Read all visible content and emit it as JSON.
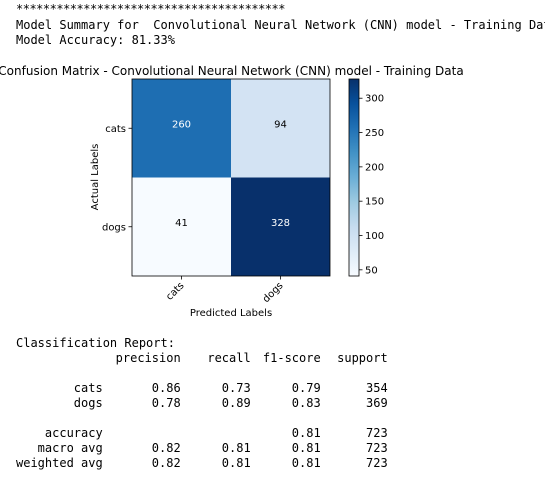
{
  "console": {
    "stars": "****************************************",
    "summary_line": "Model Summary for  Convolutional Neural Network (CNN) model - Training Data",
    "accuracy_line": "Model Accuracy: 81.33%",
    "report_title": "Classification Report:"
  },
  "chart_data": {
    "type": "heatmap",
    "title": "Confusion Matrix - Convolutional Neural Network (CNN) model - Training Data",
    "xlabel": "Predicted Labels",
    "ylabel": "Actual Labels",
    "x_categories": [
      "cats",
      "dogs"
    ],
    "y_categories": [
      "cats",
      "dogs"
    ],
    "matrix": [
      [
        260,
        94
      ],
      [
        41,
        328
      ]
    ],
    "colormap": "Blues",
    "colorbar": {
      "min": 41,
      "max": 328,
      "ticks": [
        50,
        100,
        150,
        200,
        250,
        300
      ]
    }
  },
  "report": {
    "headers": [
      "",
      "precision",
      "recall",
      "f1-score",
      "support"
    ],
    "class_rows": [
      [
        "cats",
        "0.86",
        "0.73",
        "0.79",
        "354"
      ],
      [
        "dogs",
        "0.78",
        "0.89",
        "0.83",
        "369"
      ]
    ],
    "summary_rows": [
      [
        "accuracy",
        "",
        "",
        "0.81",
        "723"
      ],
      [
        "macro avg",
        "0.82",
        "0.81",
        "0.81",
        "723"
      ],
      [
        "weighted avg",
        "0.82",
        "0.81",
        "0.81",
        "723"
      ]
    ]
  }
}
